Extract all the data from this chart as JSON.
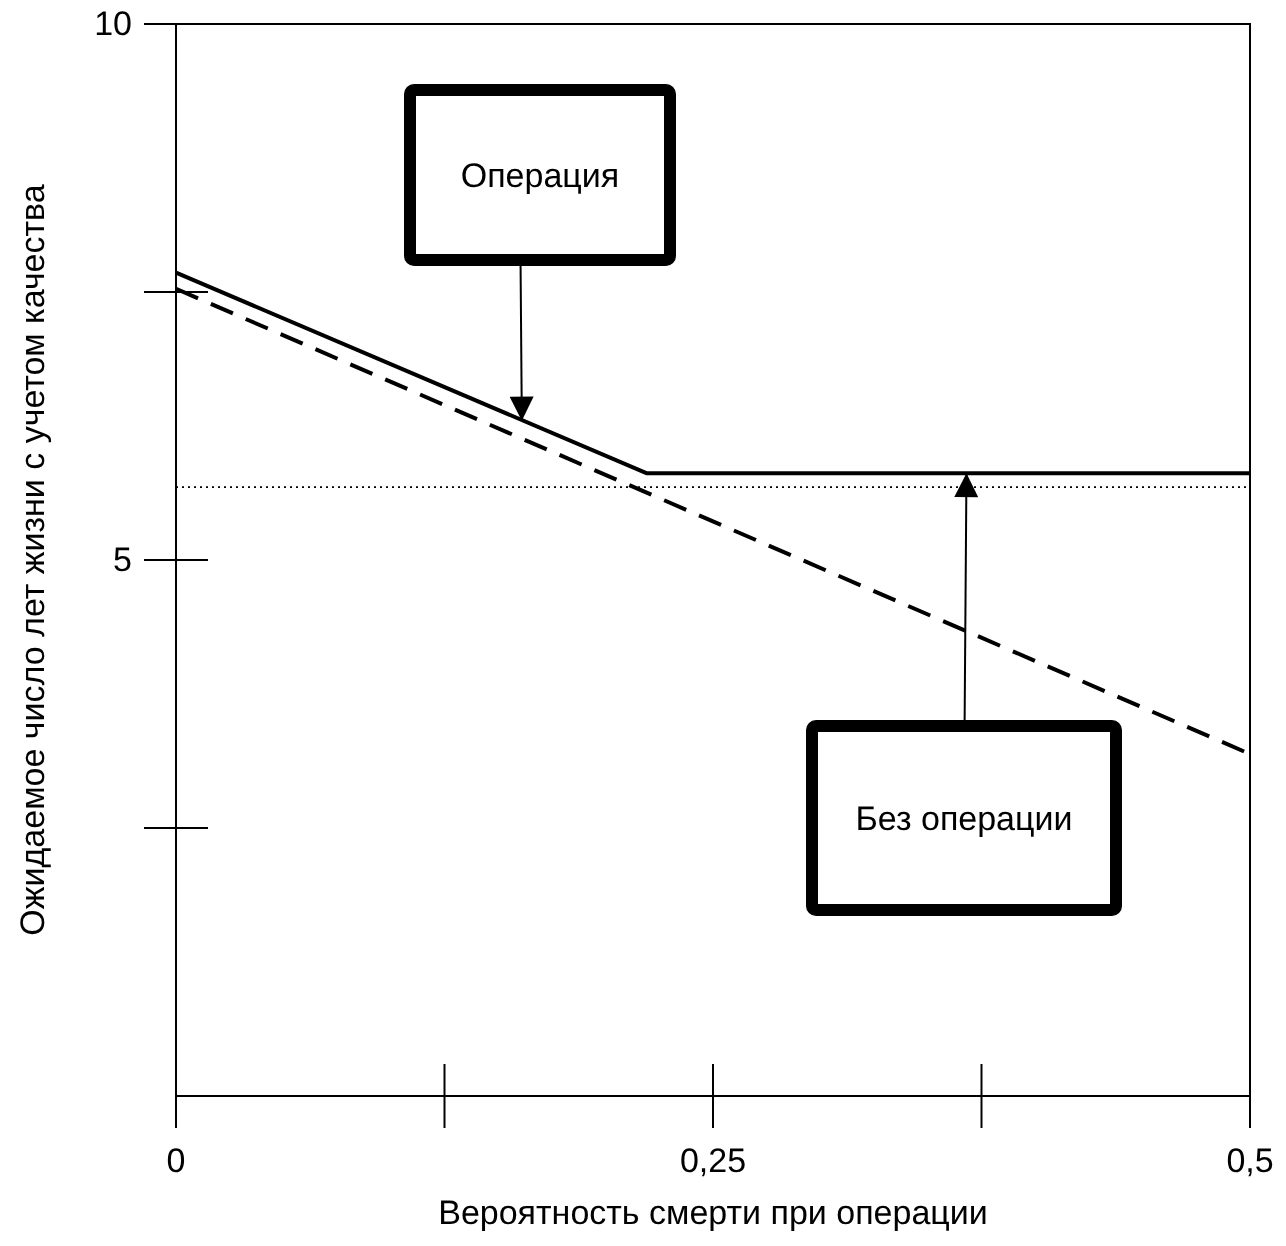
{
  "chart_data": {
    "type": "line",
    "xlabel": "Вероятность смерти при операции",
    "ylabel": "Ожидаемое число лет жизни с учетом качества",
    "xlim": [
      0,
      0.5
    ],
    "ylim": [
      0,
      10
    ],
    "xticks": [
      {
        "value": 0,
        "label": "0"
      },
      {
        "value": 0.125,
        "label": null
      },
      {
        "value": 0.25,
        "label": "0,25"
      },
      {
        "value": 0.375,
        "label": null
      },
      {
        "value": 0.5,
        "label": "0,5"
      }
    ],
    "yticks": [
      {
        "value": 2.5,
        "label": null
      },
      {
        "value": 5,
        "label": "5"
      },
      {
        "value": 7.5,
        "label": null
      },
      {
        "value": 10,
        "label": "10"
      }
    ],
    "series": [
      {
        "color": "#000000",
        "x": [
          0,
          0.219,
          0.5
        ],
        "values": [
          7.68,
          5.81,
          5.81
        ],
        "line_style": "solid"
      },
      {
        "color": "#000000",
        "x": [
          0,
          0.5
        ],
        "values": [
          7.53,
          3.19
        ],
        "line_style": "dashed"
      }
    ],
    "ref_lines": [
      {
        "axis": "y",
        "value": 5.68,
        "line_style": "dotted",
        "color": "#000000"
      }
    ],
    "annotations": [
      {
        "text": "Операция",
        "x": 0.161,
        "y": 6.3
      },
      {
        "text": "Без операции",
        "x": 0.368,
        "y": 5.81
      }
    ],
    "marker": "none",
    "grid": false
  }
}
